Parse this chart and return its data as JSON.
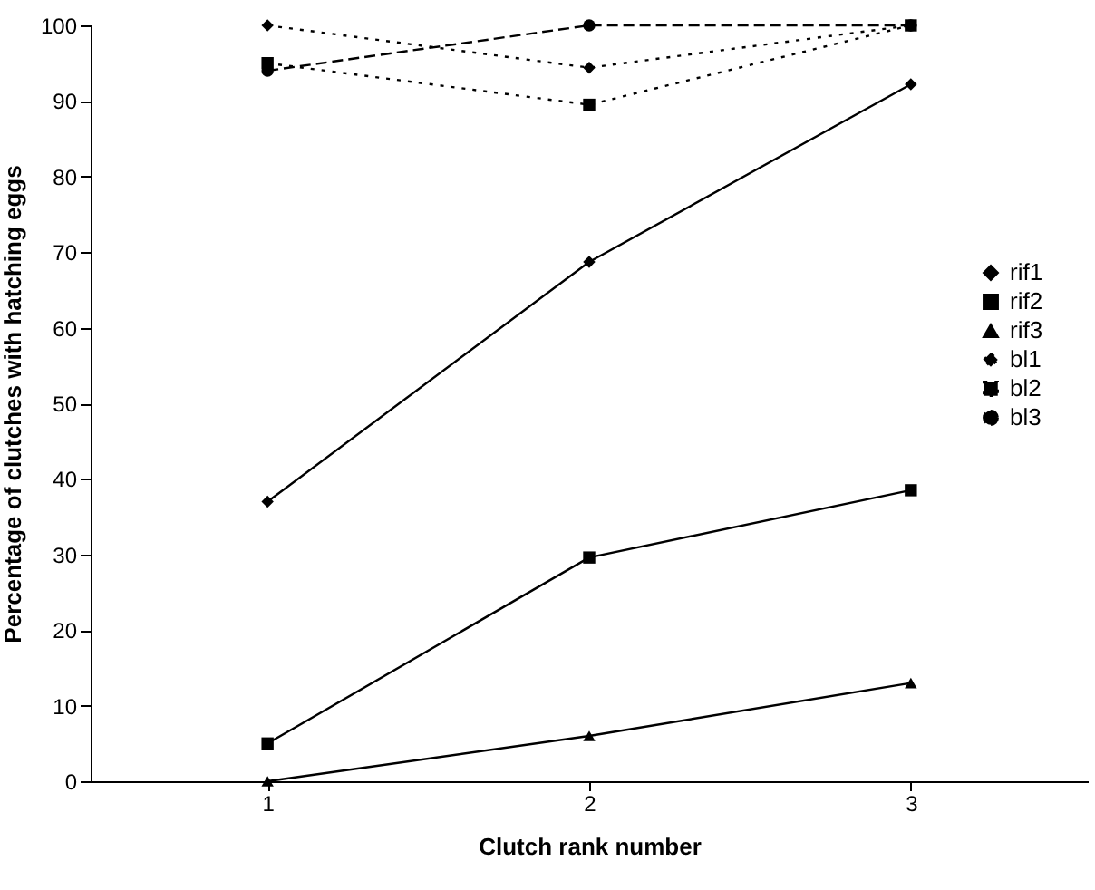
{
  "chart_data": {
    "type": "line",
    "xlabel": "Clutch rank number",
    "ylabel": "Percentage of clutches with hatching eggs",
    "categories": [
      "1",
      "2",
      "3"
    ],
    "ylim": [
      0,
      100
    ],
    "yticks": [
      0,
      10,
      20,
      30,
      40,
      50,
      60,
      70,
      80,
      90,
      100
    ],
    "grid": false,
    "legend": "right",
    "series": [
      {
        "name": "rif1",
        "color": "#000000",
        "marker": "diamond",
        "line_style": "solid",
        "values": [
          37,
          68.7,
          92.2
        ]
      },
      {
        "name": "rif2",
        "color": "#000000",
        "marker": "square",
        "line_style": "solid",
        "values": [
          5,
          29.6,
          38.5
        ]
      },
      {
        "name": "rif3",
        "color": "#000000",
        "marker": "triangle",
        "line_style": "solid",
        "values": [
          0,
          6,
          13
        ]
      },
      {
        "name": "bl1",
        "color": "#000000",
        "marker": "diamond",
        "line_style": "dotted",
        "values": [
          100,
          94.4,
          100
        ]
      },
      {
        "name": "bl2",
        "color": "#000000",
        "marker": "square",
        "line_style": "dotted",
        "values": [
          95,
          89.5,
          100
        ]
      },
      {
        "name": "bl3",
        "color": "#000000",
        "marker": "circle",
        "line_style": "dashed",
        "values": [
          94,
          100,
          100
        ]
      }
    ]
  }
}
